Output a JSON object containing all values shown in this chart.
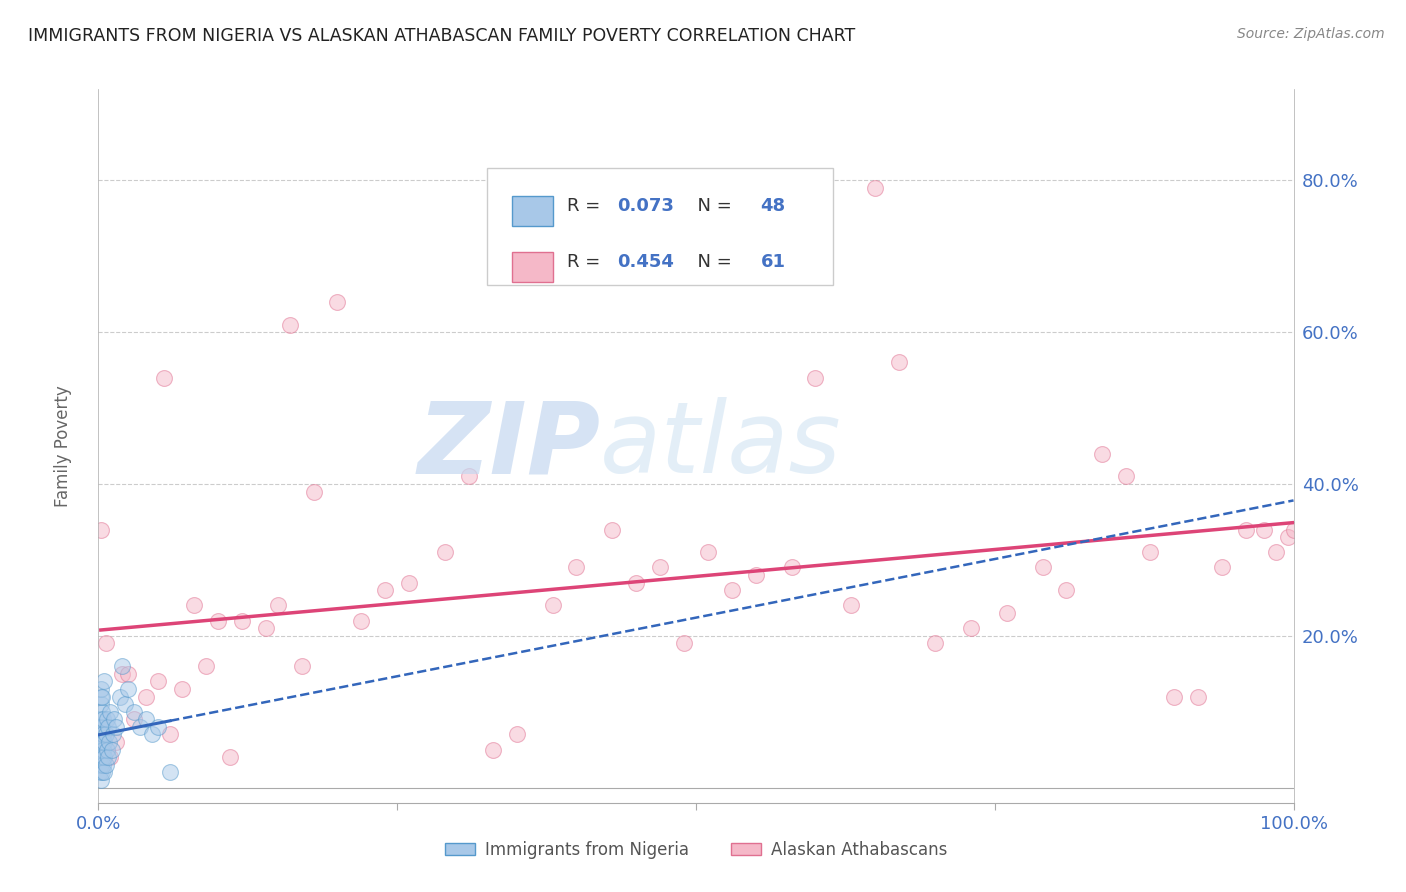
{
  "title": "IMMIGRANTS FROM NIGERIA VS ALASKAN ATHABASCAN FAMILY POVERTY CORRELATION CHART",
  "source": "Source: ZipAtlas.com",
  "ylabel": "Family Poverty",
  "xlim": [
    0.0,
    1.0
  ],
  "ylim": [
    -0.02,
    0.92
  ],
  "y_ticks": [
    0.0,
    0.2,
    0.4,
    0.6,
    0.8
  ],
  "y_tick_labels": [
    "",
    "20.0%",
    "40.0%",
    "60.0%",
    "80.0%"
  ],
  "x_ticks": [
    0.0,
    0.25,
    0.5,
    0.75,
    1.0
  ],
  "x_tick_labels": [
    "0.0%",
    "",
    "",
    "",
    "100.0%"
  ],
  "nigeria_color": "#a8c8e8",
  "nigeria_edge_color": "#5599cc",
  "athabascan_color": "#f5b8c8",
  "athabascan_edge_color": "#e07090",
  "nigeria_line_color": "#3366bb",
  "athabascan_line_color": "#dd4477",
  "nigeria_x": [
    0.001,
    0.001,
    0.001,
    0.001,
    0.002,
    0.002,
    0.002,
    0.002,
    0.002,
    0.002,
    0.002,
    0.002,
    0.003,
    0.003,
    0.003,
    0.003,
    0.003,
    0.003,
    0.004,
    0.004,
    0.004,
    0.004,
    0.005,
    0.005,
    0.005,
    0.005,
    0.006,
    0.006,
    0.007,
    0.007,
    0.008,
    0.008,
    0.009,
    0.01,
    0.011,
    0.012,
    0.013,
    0.015,
    0.018,
    0.02,
    0.022,
    0.025,
    0.03,
    0.035,
    0.04,
    0.045,
    0.05,
    0.06
  ],
  "nigeria_y": [
    0.02,
    0.04,
    0.06,
    0.08,
    0.01,
    0.03,
    0.05,
    0.07,
    0.09,
    0.11,
    0.12,
    0.13,
    0.02,
    0.04,
    0.06,
    0.08,
    0.1,
    0.12,
    0.03,
    0.05,
    0.07,
    0.09,
    0.02,
    0.04,
    0.06,
    0.14,
    0.03,
    0.07,
    0.05,
    0.09,
    0.04,
    0.08,
    0.06,
    0.1,
    0.05,
    0.07,
    0.09,
    0.08,
    0.12,
    0.16,
    0.11,
    0.13,
    0.1,
    0.08,
    0.09,
    0.07,
    0.08,
    0.02
  ],
  "athabascan_x": [
    0.002,
    0.004,
    0.006,
    0.01,
    0.015,
    0.02,
    0.025,
    0.03,
    0.04,
    0.05,
    0.055,
    0.06,
    0.07,
    0.08,
    0.09,
    0.1,
    0.11,
    0.12,
    0.14,
    0.15,
    0.16,
    0.17,
    0.18,
    0.2,
    0.22,
    0.24,
    0.26,
    0.29,
    0.31,
    0.33,
    0.35,
    0.38,
    0.4,
    0.43,
    0.45,
    0.47,
    0.49,
    0.51,
    0.53,
    0.55,
    0.58,
    0.6,
    0.63,
    0.65,
    0.67,
    0.7,
    0.73,
    0.76,
    0.79,
    0.81,
    0.84,
    0.86,
    0.88,
    0.9,
    0.92,
    0.94,
    0.96,
    0.975,
    0.985,
    0.995,
    1.0
  ],
  "athabascan_y": [
    0.34,
    0.07,
    0.19,
    0.04,
    0.06,
    0.15,
    0.15,
    0.09,
    0.12,
    0.14,
    0.54,
    0.07,
    0.13,
    0.24,
    0.16,
    0.22,
    0.04,
    0.22,
    0.21,
    0.24,
    0.61,
    0.16,
    0.39,
    0.64,
    0.22,
    0.26,
    0.27,
    0.31,
    0.41,
    0.05,
    0.07,
    0.24,
    0.29,
    0.34,
    0.27,
    0.29,
    0.19,
    0.31,
    0.26,
    0.28,
    0.29,
    0.54,
    0.24,
    0.79,
    0.56,
    0.19,
    0.21,
    0.23,
    0.29,
    0.26,
    0.44,
    0.41,
    0.31,
    0.12,
    0.12,
    0.29,
    0.34,
    0.34,
    0.31,
    0.33,
    0.34
  ],
  "watermark_zip": "ZIP",
  "watermark_atlas": "atlas",
  "background_color": "#ffffff",
  "grid_color": "#cccccc",
  "marker_size": 130,
  "marker_alpha": 0.5,
  "title_color": "#222222",
  "axis_label_color": "#666666",
  "tick_label_color": "#4472c4",
  "nigeria_R": "0.073",
  "nigeria_N": "48",
  "athabascan_R": "0.454",
  "athabascan_N": "61"
}
